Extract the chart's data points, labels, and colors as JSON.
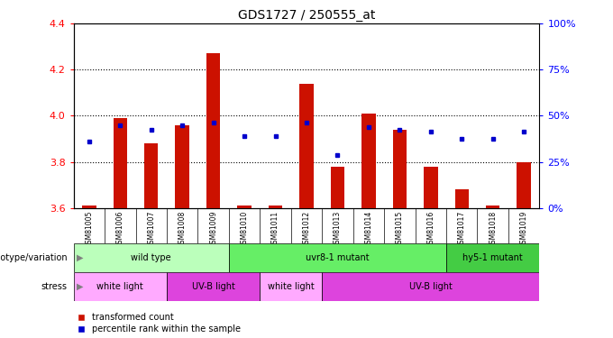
{
  "title": "GDS1727 / 250555_at",
  "samples": [
    "GSM81005",
    "GSM81006",
    "GSM81007",
    "GSM81008",
    "GSM81009",
    "GSM81010",
    "GSM81011",
    "GSM81012",
    "GSM81013",
    "GSM81014",
    "GSM81015",
    "GSM81016",
    "GSM81017",
    "GSM81018",
    "GSM81019"
  ],
  "bar_values": [
    3.61,
    3.99,
    3.88,
    3.96,
    4.27,
    3.61,
    3.61,
    4.14,
    3.78,
    4.01,
    3.94,
    3.78,
    3.68,
    3.61,
    3.8
  ],
  "dot_values": [
    3.89,
    3.96,
    3.94,
    3.96,
    3.97,
    3.91,
    3.91,
    3.97,
    3.83,
    3.95,
    3.94,
    3.93,
    3.9,
    3.9,
    3.93
  ],
  "bar_base": 3.6,
  "ylim_left": [
    3.6,
    4.4
  ],
  "yticks_left": [
    3.6,
    3.8,
    4.0,
    4.2,
    4.4
  ],
  "yticks_right": [
    0,
    25,
    50,
    75,
    100
  ],
  "ylim_right": [
    0,
    100
  ],
  "bar_color": "#cc1100",
  "dot_color": "#0000cc",
  "label_bg_color": "#c8c8c8",
  "genotype_groups": [
    {
      "label": "wild type",
      "start": 0,
      "end": 5,
      "color": "#bbffbb"
    },
    {
      "label": "uvr8-1 mutant",
      "start": 5,
      "end": 12,
      "color": "#66ee66"
    },
    {
      "label": "hy5-1 mutant",
      "start": 12,
      "end": 15,
      "color": "#44cc44"
    }
  ],
  "stress_groups": [
    {
      "label": "white light",
      "start": 0,
      "end": 3,
      "color": "#ffaaff"
    },
    {
      "label": "UV-B light",
      "start": 3,
      "end": 6,
      "color": "#dd44dd"
    },
    {
      "label": "white light",
      "start": 6,
      "end": 8,
      "color": "#ffaaff"
    },
    {
      "label": "UV-B light",
      "start": 8,
      "end": 15,
      "color": "#dd44dd"
    }
  ],
  "legend_red": "transformed count",
  "legend_blue": "percentile rank within the sample",
  "label_genotype": "genotype/variation",
  "label_stress": "stress"
}
